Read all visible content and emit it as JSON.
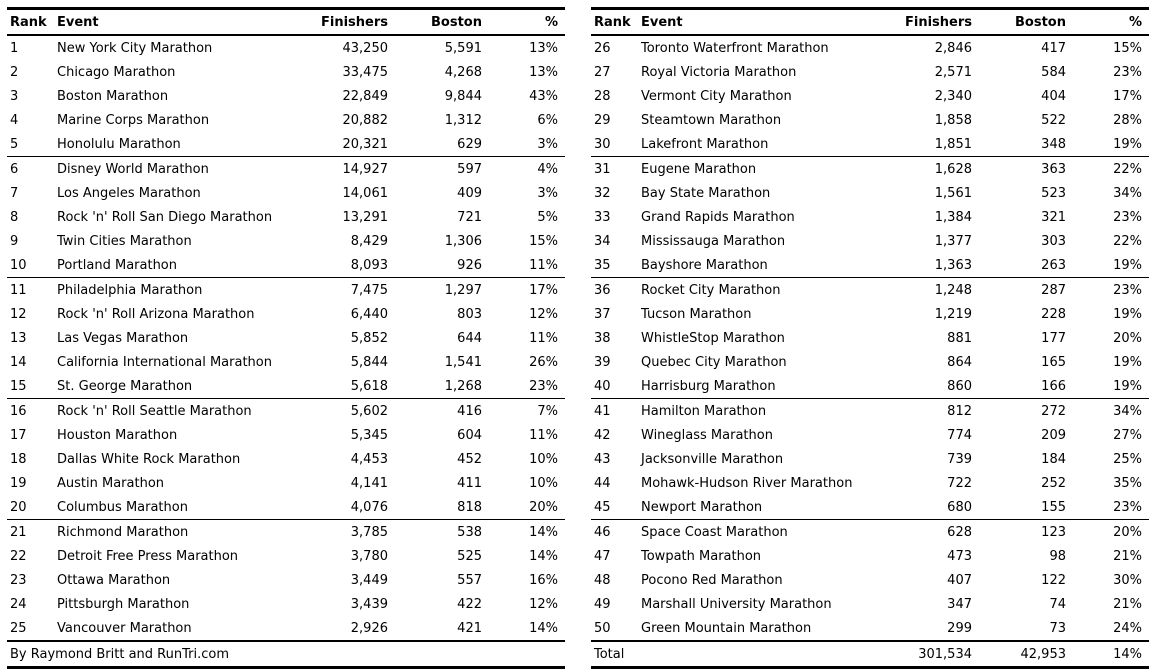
{
  "chart_data": {
    "type": "table",
    "title": "",
    "columns": [
      "Rank",
      "Event",
      "Finishers",
      "Boston",
      "%"
    ],
    "text_color": "#000000",
    "background_color": "#ffffff",
    "tables": [
      {
        "rows": [
          [
            "1",
            "New York City Marathon",
            "43,250",
            "5,591",
            "13%"
          ],
          [
            "2",
            "Chicago Marathon",
            "33,475",
            "4,268",
            "13%"
          ],
          [
            "3",
            "Boston Marathon",
            "22,849",
            "9,844",
            "43%"
          ],
          [
            "4",
            "Marine Corps Marathon",
            "20,882",
            "1,312",
            "6%"
          ],
          [
            "5",
            "Honolulu Marathon",
            "20,321",
            "629",
            "3%"
          ],
          [
            "6",
            "Disney World Marathon",
            "14,927",
            "597",
            "4%"
          ],
          [
            "7",
            "Los Angeles Marathon",
            "14,061",
            "409",
            "3%"
          ],
          [
            "8",
            "Rock 'n' Roll San Diego Marathon",
            "13,291",
            "721",
            "5%"
          ],
          [
            "9",
            "Twin Cities Marathon",
            "8,429",
            "1,306",
            "15%"
          ],
          [
            "10",
            "Portland Marathon",
            "8,093",
            "926",
            "11%"
          ],
          [
            "11",
            "Philadelphia Marathon",
            "7,475",
            "1,297",
            "17%"
          ],
          [
            "12",
            "Rock 'n' Roll Arizona Marathon",
            "6,440",
            "803",
            "12%"
          ],
          [
            "13",
            "Las Vegas Marathon",
            "5,852",
            "644",
            "11%"
          ],
          [
            "14",
            "California International Marathon",
            "5,844",
            "1,541",
            "26%"
          ],
          [
            "15",
            "St. George Marathon",
            "5,618",
            "1,268",
            "23%"
          ],
          [
            "16",
            "Rock 'n' Roll Seattle Marathon",
            "5,602",
            "416",
            "7%"
          ],
          [
            "17",
            "Houston Marathon",
            "5,345",
            "604",
            "11%"
          ],
          [
            "18",
            "Dallas White Rock Marathon",
            "4,453",
            "452",
            "10%"
          ],
          [
            "19",
            "Austin Marathon",
            "4,141",
            "411",
            "10%"
          ],
          [
            "20",
            "Columbus Marathon",
            "4,076",
            "818",
            "20%"
          ],
          [
            "21",
            "Richmond Marathon",
            "3,785",
            "538",
            "14%"
          ],
          [
            "22",
            "Detroit Free Press Marathon",
            "3,780",
            "525",
            "14%"
          ],
          [
            "23",
            "Ottawa Marathon",
            "3,449",
            "557",
            "16%"
          ],
          [
            "24",
            "Pittsburgh Marathon",
            "3,439",
            "422",
            "12%"
          ],
          [
            "25",
            "Vancouver  Marathon",
            "2,926",
            "421",
            "14%"
          ]
        ],
        "attribution": "By Raymond Britt and RunTri.com"
      },
      {
        "rows": [
          [
            "26",
            "Toronto Waterfront Marathon",
            "2,846",
            "417",
            "15%"
          ],
          [
            "27",
            "Royal Victoria Marathon",
            "2,571",
            "584",
            "23%"
          ],
          [
            "28",
            "Vermont City Marathon",
            "2,340",
            "404",
            "17%"
          ],
          [
            "29",
            "Steamtown Marathon",
            "1,858",
            "522",
            "28%"
          ],
          [
            "30",
            "Lakefront Marathon",
            "1,851",
            "348",
            "19%"
          ],
          [
            "31",
            "Eugene Marathon",
            "1,628",
            "363",
            "22%"
          ],
          [
            "32",
            "Bay State Marathon",
            "1,561",
            "523",
            "34%"
          ],
          [
            "33",
            "Grand Rapids Marathon",
            "1,384",
            "321",
            "23%"
          ],
          [
            "34",
            "Mississauga Marathon",
            "1,377",
            "303",
            "22%"
          ],
          [
            "35",
            "Bayshore Marathon",
            "1,363",
            "263",
            "19%"
          ],
          [
            "36",
            "Rocket City Marathon",
            "1,248",
            "287",
            "23%"
          ],
          [
            "37",
            "Tucson Marathon",
            "1,219",
            "228",
            "19%"
          ],
          [
            "38",
            "WhistleStop Marathon",
            "881",
            "177",
            "20%"
          ],
          [
            "39",
            "Quebec City Marathon",
            "864",
            "165",
            "19%"
          ],
          [
            "40",
            "Harrisburg Marathon",
            "860",
            "166",
            "19%"
          ],
          [
            "41",
            "Hamilton Marathon",
            "812",
            "272",
            "34%"
          ],
          [
            "42",
            "Wineglass Marathon",
            "774",
            "209",
            "27%"
          ],
          [
            "43",
            "Jacksonville Marathon",
            "739",
            "184",
            "25%"
          ],
          [
            "44",
            "Mohawk-Hudson River Marathon",
            "722",
            "252",
            "35%"
          ],
          [
            "45",
            "Newport Marathon",
            "680",
            "155",
            "23%"
          ],
          [
            "46",
            "Space Coast Marathon",
            "628",
            "123",
            "20%"
          ],
          [
            "47",
            "Towpath Marathon",
            "473",
            "98",
            "21%"
          ],
          [
            "48",
            "Pocono Red Marathon",
            "407",
            "122",
            "30%"
          ],
          [
            "49",
            "Marshall University Marathon",
            "347",
            "74",
            "21%"
          ],
          [
            "50",
            "Green Mountain Marathon",
            "299",
            "73",
            "24%"
          ]
        ],
        "total": {
          "label": "Total",
          "finishers": "301,534",
          "boston": "42,953",
          "pct": "14%"
        }
      }
    ]
  }
}
